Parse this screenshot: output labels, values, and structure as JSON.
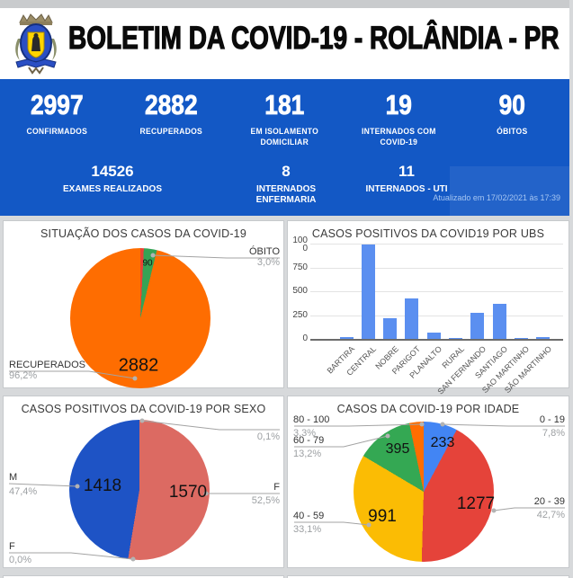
{
  "header": {
    "title": "BOLETIM DA COVID-19 - ROLÂNDIA - PR",
    "logo": "rolandia-city-crest"
  },
  "stats_bar": {
    "bg_color": "#1358c5",
    "row1": [
      {
        "value": "2997",
        "label": "CONFIRMADOS"
      },
      {
        "value": "2882",
        "label": "RECUPERADOS"
      },
      {
        "value": "181",
        "label": "EM ISOLAMENTO\nDOMICILIAR"
      },
      {
        "value": "19",
        "label": "INTERNADOS COM\nCOVID-19"
      },
      {
        "value": "90",
        "label": "ÓBITOS"
      }
    ],
    "row2": [
      {
        "value": "14526",
        "label": "EXAMES REALIZADOS"
      },
      {
        "value": "8",
        "label": "INTERNADOS\nENFERMARIA"
      },
      {
        "value": "11",
        "label": "INTERNADOS - UTI"
      }
    ],
    "updated": "Atualizado em 17/02/2021 às 17:39"
  },
  "chart_data": [
    {
      "id": "situacao",
      "type": "pie",
      "title": "SITUAÇÃO DOS CASOS DA COVID-19",
      "legend_position": "labeled",
      "slices": [
        {
          "label": "",
          "value": null,
          "percent": 0.8,
          "percent_label": "",
          "color": "#e94335"
        },
        {
          "label": "ÓBITO",
          "value": 90,
          "percent": 3.0,
          "percent_label": "3,0%",
          "color": "#35a355"
        },
        {
          "label": "RECUPERADOS",
          "value": 2882,
          "percent": 96.2,
          "percent_label": "96,2%",
          "color": "#fe6d01"
        }
      ]
    },
    {
      "id": "ubs",
      "type": "bar",
      "title": "CASOS POSITIVOS DA COVID19 POR UBS",
      "categories": [
        "BARTIRA",
        "CENTRAL",
        "NOBRE",
        "PARIGOT",
        "PLANALTO",
        "RURAL",
        "SAN FERNANDO",
        "SANTIAGO",
        "SAO MARTINHO",
        "SÃO MARTINHO"
      ],
      "values": [
        22,
        990,
        220,
        420,
        62,
        3,
        275,
        370,
        2,
        20
      ],
      "bar_color": "#5b8ff0",
      "xlabel": "",
      "ylabel": "",
      "ylim": [
        0,
        1000
      ],
      "yticks": [
        0,
        250,
        500,
        750,
        1000
      ],
      "ytick_labels": [
        "0",
        "250",
        "500",
        "750",
        "100\n0"
      ],
      "grid": true
    },
    {
      "id": "sexo",
      "type": "pie",
      "title": "CASOS POSITIVOS DA COVID-19 POR SEXO",
      "legend_position": "labeled",
      "slices": [
        {
          "label": "",
          "value": null,
          "percent": 0.1,
          "percent_label": "0,1%",
          "color": "#dc6a62"
        },
        {
          "label": "F",
          "value": 1570,
          "percent": 52.5,
          "percent_label": "52,5%",
          "color": "#dc6a62"
        },
        {
          "label": "F",
          "value": null,
          "percent": 0.0,
          "percent_label": "0,0%",
          "color": "#dc6a62"
        },
        {
          "label": "M",
          "value": 1418,
          "percent": 47.4,
          "percent_label": "47,4%",
          "color": "#1e53c5"
        }
      ]
    },
    {
      "id": "idade",
      "type": "pie",
      "title": "CASOS DA COVID-19 POR IDADE",
      "legend_position": "labeled",
      "slices": [
        {
          "label": "0 - 19",
          "value": 233,
          "percent": 7.8,
          "percent_label": "7,8%",
          "color": "#4285f4"
        },
        {
          "label": "20 - 39",
          "value": 1277,
          "percent": 42.7,
          "percent_label": "42,7%",
          "color": "#e5433a"
        },
        {
          "label": "40 - 59",
          "value": 991,
          "percent": 33.1,
          "percent_label": "33,1%",
          "color": "#fbbc04"
        },
        {
          "label": "60 - 79",
          "value": 395,
          "percent": 13.2,
          "percent_label": "13,2%",
          "color": "#34a853"
        },
        {
          "label": "80 - 100",
          "value": null,
          "percent": 3.3,
          "percent_label": "3,3%",
          "color": "#ff6d01"
        }
      ]
    }
  ]
}
